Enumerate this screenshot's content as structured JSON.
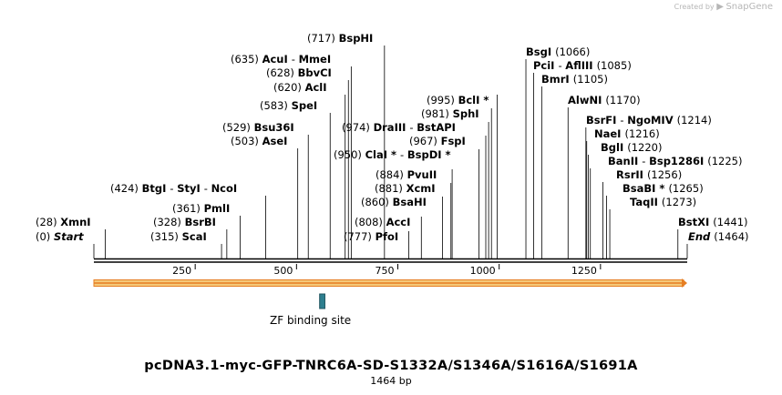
{
  "credit": {
    "prefix": "Created by",
    "brand": "SnapGene"
  },
  "title": "pcDNA3.1-myc-GFP-TNRC6A-SD-S1332A/S1346A/S1616A/S1691A",
  "subtitle": "1464 bp",
  "sequence_length": 1464,
  "axis_ticks": [
    250,
    500,
    750,
    1000,
    1250
  ],
  "colors": {
    "backbone": "#000000",
    "feature_fill": "#f5c97a",
    "feature_edge": "#e67e22",
    "binding_site": "#2e7f8f"
  },
  "features": [
    {
      "name": "ZF binding site",
      "start": 557,
      "end": 570,
      "type": "misc_binding"
    }
  ],
  "arrow": {
    "start": 0,
    "end": 1464,
    "direction": "forward"
  },
  "left_labels": [
    {
      "parts": [
        {
          "text": "(0)",
          "style": "pos"
        },
        {
          "text": "Start",
          "style": "it"
        }
      ],
      "pos": 0
    },
    {
      "parts": [
        {
          "text": "(28)",
          "style": "pos"
        },
        {
          "text": "XmnI",
          "style": "nm"
        }
      ],
      "pos": 28
    },
    {
      "parts": [
        {
          "text": "(315)",
          "style": "pos"
        },
        {
          "text": "ScaI",
          "style": "nm"
        }
      ],
      "pos": 315
    },
    {
      "parts": [
        {
          "text": "(328)",
          "style": "pos"
        },
        {
          "text": "BsrBI",
          "style": "nm"
        }
      ],
      "pos": 328
    },
    {
      "parts": [
        {
          "text": "(361)",
          "style": "pos"
        },
        {
          "text": "PmlI",
          "style": "nm"
        }
      ],
      "pos": 361
    },
    {
      "parts": [
        {
          "text": "(424)",
          "style": "pos"
        },
        {
          "text": "BtgI",
          "style": "nm"
        },
        {
          "text": "-",
          "style": "sep"
        },
        {
          "text": "StyI",
          "style": "nm"
        },
        {
          "text": "-",
          "style": "sep"
        },
        {
          "text": "NcoI",
          "style": "nm"
        }
      ],
      "pos": 424
    },
    {
      "parts": [
        {
          "text": "(503)",
          "style": "pos"
        },
        {
          "text": "AseI",
          "style": "nm"
        }
      ],
      "pos": 503
    },
    {
      "parts": [
        {
          "text": "(529)",
          "style": "pos"
        },
        {
          "text": "Bsu36I",
          "style": "nm"
        }
      ],
      "pos": 529
    },
    {
      "parts": [
        {
          "text": "(583)",
          "style": "pos"
        },
        {
          "text": "SpeI",
          "style": "nm"
        }
      ],
      "pos": 583
    },
    {
      "parts": [
        {
          "text": "(620)",
          "style": "pos"
        },
        {
          "text": "AclI",
          "style": "nm"
        }
      ],
      "pos": 620
    },
    {
      "parts": [
        {
          "text": "(628)",
          "style": "pos"
        },
        {
          "text": "BbvCI",
          "style": "nm"
        }
      ],
      "pos": 628
    },
    {
      "parts": [
        {
          "text": "(635)",
          "style": "pos"
        },
        {
          "text": "AcuI",
          "style": "nm"
        },
        {
          "text": "-",
          "style": "sep"
        },
        {
          "text": "MmeI",
          "style": "nm"
        }
      ],
      "pos": 635
    },
    {
      "parts": [
        {
          "text": "(717)",
          "style": "pos"
        },
        {
          "text": "BspHI",
          "style": "nm"
        }
      ],
      "pos": 717
    }
  ],
  "mid_labels": [
    {
      "parts": [
        {
          "text": "(777)",
          "style": "pos"
        },
        {
          "text": "PfoI",
          "style": "nm"
        }
      ],
      "pos": 777
    },
    {
      "parts": [
        {
          "text": "(808)",
          "style": "pos"
        },
        {
          "text": "AccI",
          "style": "nm"
        }
      ],
      "pos": 808
    },
    {
      "parts": [
        {
          "text": "(860)",
          "style": "pos"
        },
        {
          "text": "BsaHI",
          "style": "nm"
        }
      ],
      "pos": 860
    },
    {
      "parts": [
        {
          "text": "(881)",
          "style": "pos"
        },
        {
          "text": "XcmI",
          "style": "nm"
        }
      ],
      "pos": 881
    },
    {
      "parts": [
        {
          "text": "(884)",
          "style": "pos"
        },
        {
          "text": "PvuII",
          "style": "nm"
        }
      ],
      "pos": 884
    },
    {
      "parts": [
        {
          "text": "(950)",
          "style": "pos"
        },
        {
          "text": "ClaI *",
          "style": "nm"
        },
        {
          "text": "-",
          "style": "sep"
        },
        {
          "text": "BspDI *",
          "style": "nm"
        }
      ],
      "pos": 950
    },
    {
      "parts": [
        {
          "text": "(967)",
          "style": "pos"
        },
        {
          "text": "FspI",
          "style": "nm"
        }
      ],
      "pos": 967
    },
    {
      "parts": [
        {
          "text": "(974)",
          "style": "pos"
        },
        {
          "text": "DraIII",
          "style": "nm"
        },
        {
          "text": "-",
          "style": "sep"
        },
        {
          "text": "BstAPI",
          "style": "nm"
        }
      ],
      "pos": 974
    },
    {
      "parts": [
        {
          "text": "(981)",
          "style": "pos"
        },
        {
          "text": "SphI",
          "style": "nm"
        }
      ],
      "pos": 981
    },
    {
      "parts": [
        {
          "text": "(995)",
          "style": "pos"
        },
        {
          "text": "BclI *",
          "style": "nm"
        }
      ],
      "pos": 995
    }
  ],
  "right_labels": [
    {
      "parts": [
        {
          "text": "BsgI",
          "style": "nm"
        },
        {
          "text": "(1066)",
          "style": "pos"
        }
      ],
      "pos": 1066
    },
    {
      "parts": [
        {
          "text": "PciI",
          "style": "nm"
        },
        {
          "text": "-",
          "style": "sep"
        },
        {
          "text": "AflIII",
          "style": "nm"
        },
        {
          "text": "(1085)",
          "style": "pos"
        }
      ],
      "pos": 1085
    },
    {
      "parts": [
        {
          "text": "BmrI",
          "style": "nm"
        },
        {
          "text": "(1105)",
          "style": "pos"
        }
      ],
      "pos": 1105
    },
    {
      "parts": [
        {
          "text": "AlwNI",
          "style": "nm"
        },
        {
          "text": "(1170)",
          "style": "pos"
        }
      ],
      "pos": 1170
    },
    {
      "parts": [
        {
          "text": "BsrFI",
          "style": "nm"
        },
        {
          "text": "-",
          "style": "sep"
        },
        {
          "text": "NgoMIV",
          "style": "nm"
        },
        {
          "text": "(1214)",
          "style": "pos"
        }
      ],
      "pos": 1214
    },
    {
      "parts": [
        {
          "text": "NaeI",
          "style": "nm"
        },
        {
          "text": "(1216)",
          "style": "pos"
        }
      ],
      "pos": 1216
    },
    {
      "parts": [
        {
          "text": "BglI",
          "style": "nm"
        },
        {
          "text": "(1220)",
          "style": "pos"
        }
      ],
      "pos": 1220
    },
    {
      "parts": [
        {
          "text": "BanII",
          "style": "nm"
        },
        {
          "text": "-",
          "style": "sep"
        },
        {
          "text": "Bsp1286I",
          "style": "nm"
        },
        {
          "text": "(1225)",
          "style": "pos"
        }
      ],
      "pos": 1225
    },
    {
      "parts": [
        {
          "text": "RsrII",
          "style": "nm"
        },
        {
          "text": "(1256)",
          "style": "pos"
        }
      ],
      "pos": 1256
    },
    {
      "parts": [
        {
          "text": "BsaBI *",
          "style": "nm"
        },
        {
          "text": "(1265)",
          "style": "pos"
        }
      ],
      "pos": 1265
    },
    {
      "parts": [
        {
          "text": "TaqII",
          "style": "nm"
        },
        {
          "text": "(1273)",
          "style": "pos"
        }
      ],
      "pos": 1273
    },
    {
      "parts": [
        {
          "text": "BstXI",
          "style": "nm"
        },
        {
          "text": "(1441)",
          "style": "pos"
        }
      ],
      "pos": 1441
    },
    {
      "parts": [
        {
          "text": "End",
          "style": "it"
        },
        {
          "text": "(1464)",
          "style": "pos"
        }
      ],
      "pos": 1464
    }
  ]
}
